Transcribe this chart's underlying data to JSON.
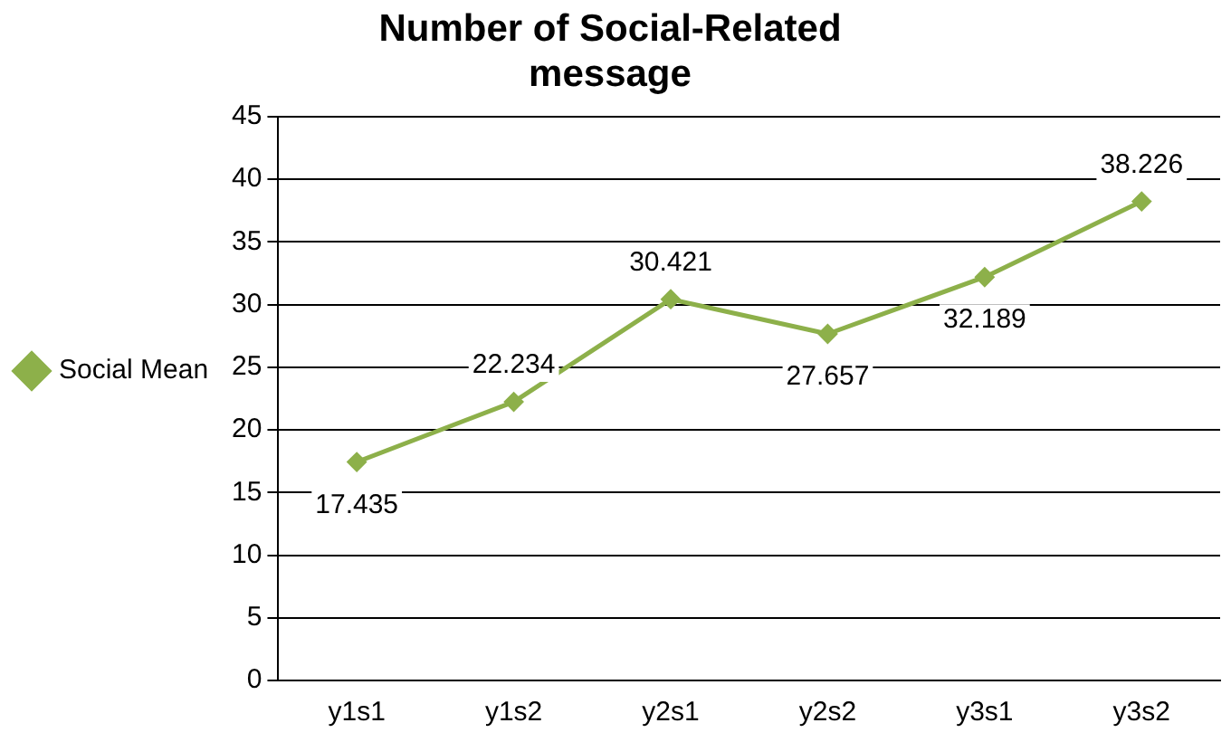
{
  "chart_data": {
    "type": "line",
    "title": "Number of Social-Related message",
    "categories": [
      "y1s1",
      "y1s2",
      "y2s1",
      "y2s2",
      "y3s1",
      "y3s2"
    ],
    "series": [
      {
        "name": "Social Mean",
        "color": "#8db04a",
        "values": [
          17.435,
          22.234,
          30.421,
          27.657,
          32.189,
          38.226
        ]
      }
    ],
    "ylim": [
      0,
      45
    ],
    "yticks": [
      0,
      5,
      10,
      15,
      20,
      25,
      30,
      35,
      40,
      45
    ],
    "grid": "y",
    "legend": "left",
    "marker": "diamond",
    "data_labels": true
  }
}
